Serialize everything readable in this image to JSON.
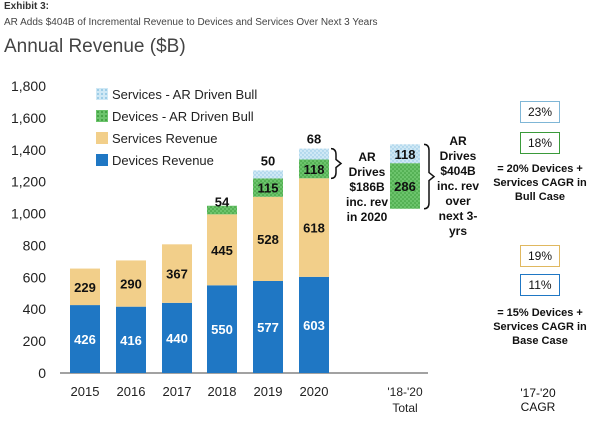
{
  "header": {
    "exhibit": "Exhibit 3:",
    "subtitle": "AR Adds $404B of Incremental Revenue to Devices and Services Over Next 3 Years",
    "title": "Annual Revenue ($B)"
  },
  "colors": {
    "devices": "#1f77c4",
    "services": "#f2cf8a",
    "devices_bull": "#6cc46c",
    "services_bull": "#bfe0f0"
  },
  "chart_data": {
    "type": "bar",
    "stacked": true,
    "categories": [
      "2015",
      "2016",
      "2017",
      "2018",
      "2019",
      "2020"
    ],
    "series": [
      {
        "name": "Devices Revenue",
        "values": [
          426,
          416,
          440,
          550,
          577,
          603
        ]
      },
      {
        "name": "Services Revenue",
        "values": [
          229,
          290,
          367,
          445,
          528,
          618
        ]
      },
      {
        "name": "Devices - AR Driven Bull",
        "values": [
          0,
          0,
          0,
          54,
          115,
          118
        ]
      },
      {
        "name": "Services - AR Driven Bull",
        "values": [
          0,
          0,
          0,
          0,
          50,
          68
        ]
      }
    ],
    "total_bar": {
      "label": "'18-'20 Total",
      "label_lines": [
        "'18-'20",
        "Total"
      ],
      "devices_bull": 286,
      "services_bull": 118
    },
    "ylim": [
      0,
      1800
    ],
    "yticks": [
      "0",
      "200",
      "400",
      "600",
      "800",
      "1,000",
      "1,200",
      "1,400",
      "1,600",
      "1,800"
    ],
    "legend": [
      "Services - AR Driven Bull",
      "Devices - AR Driven Bull",
      "Services Revenue",
      "Devices Revenue"
    ],
    "legend_position": "top-left",
    "grid": false
  },
  "annotations": {
    "drives_2020": [
      "AR",
      "Drives",
      "$186B",
      "inc. rev",
      "in 2020"
    ],
    "drives_3yrs": [
      "AR",
      "Drives",
      "$404B",
      "inc. rev",
      "over",
      "next 3-",
      "yrs"
    ]
  },
  "cagr": {
    "header_lines": [
      "'17-'20",
      "CAGR"
    ],
    "bull": {
      "services": "23%",
      "devices": "18%",
      "label": [
        "= 20% Devices +",
        "Services CAGR in",
        "Bull Case"
      ]
    },
    "base": {
      "services": "19%",
      "devices": "11%",
      "label": [
        "= 15% Devices +",
        "Services CAGR in",
        "Base Case"
      ]
    }
  }
}
